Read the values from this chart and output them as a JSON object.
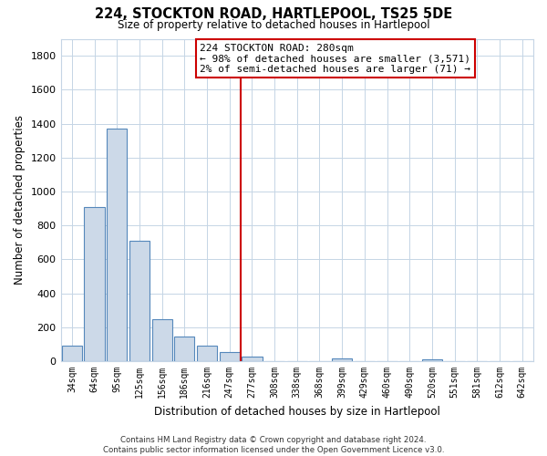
{
  "title": "224, STOCKTON ROAD, HARTLEPOOL, TS25 5DE",
  "subtitle": "Size of property relative to detached houses in Hartlepool",
  "xlabel": "Distribution of detached houses by size in Hartlepool",
  "ylabel": "Number of detached properties",
  "bar_labels": [
    "34sqm",
    "64sqm",
    "95sqm",
    "125sqm",
    "156sqm",
    "186sqm",
    "216sqm",
    "247sqm",
    "277sqm",
    "308sqm",
    "338sqm",
    "368sqm",
    "399sqm",
    "429sqm",
    "460sqm",
    "490sqm",
    "520sqm",
    "551sqm",
    "581sqm",
    "612sqm",
    "642sqm"
  ],
  "bar_values": [
    90,
    910,
    1370,
    710,
    250,
    145,
    90,
    55,
    25,
    0,
    0,
    0,
    15,
    0,
    0,
    0,
    10,
    0,
    0,
    0,
    0
  ],
  "bar_color": "#ccd9e8",
  "bar_edge_color": "#5588bb",
  "vline_label_index": 8,
  "vline_color": "#cc0000",
  "annotation_line1": "224 STOCKTON ROAD: 280sqm",
  "annotation_line2": "← 98% of detached houses are smaller (3,571)",
  "annotation_line3": "2% of semi-detached houses are larger (71) →",
  "annotation_box_facecolor": "#ffffff",
  "annotation_box_edgecolor": "#cc0000",
  "ylim": [
    0,
    1900
  ],
  "yticks": [
    0,
    200,
    400,
    600,
    800,
    1000,
    1200,
    1400,
    1600,
    1800
  ],
  "footer_text": "Contains HM Land Registry data © Crown copyright and database right 2024.\nContains public sector information licensed under the Open Government Licence v3.0.",
  "bg_color": "#ffffff",
  "grid_color": "#c5d5e5"
}
